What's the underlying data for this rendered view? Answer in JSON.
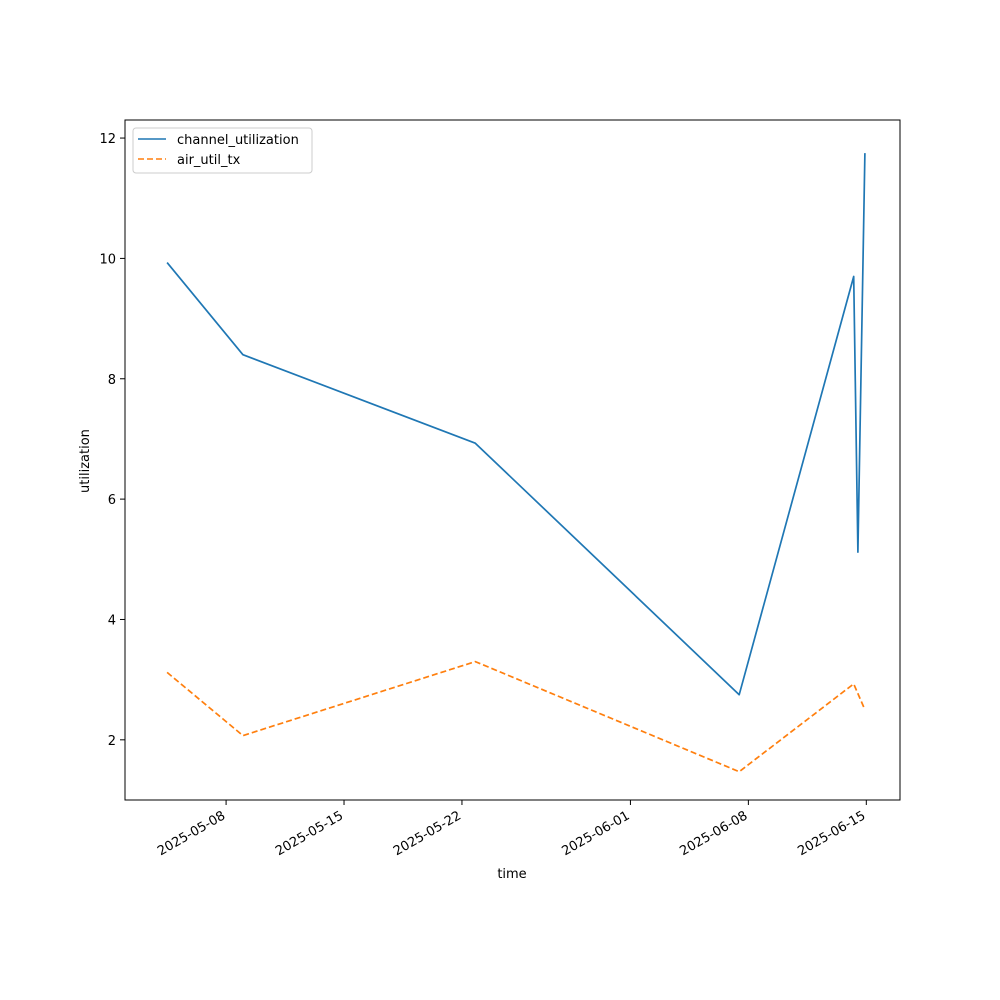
{
  "chart_data": {
    "type": "line",
    "xlabel": "time",
    "ylabel": "utilization",
    "x_type": "date",
    "xlim": [
      "2025-05-02",
      "2025-06-17"
    ],
    "ylim": [
      1.0,
      12.3
    ],
    "x_ticks": [
      "2025-05-08",
      "2025-05-15",
      "2025-05-22",
      "2025-06-01",
      "2025-06-08",
      "2025-06-15"
    ],
    "y_ticks": [
      2,
      4,
      6,
      8,
      10,
      12
    ],
    "grid": false,
    "legend_position": "top-left",
    "series": [
      {
        "name": "channel_utilization",
        "color": "#1f77b4",
        "dash": "solid",
        "points": [
          {
            "x": "2025-05-04T12:00",
            "y": 9.93
          },
          {
            "x": "2025-05-09T00:00",
            "y": 8.4
          },
          {
            "x": "2025-05-22T19:00",
            "y": 6.93
          },
          {
            "x": "2025-06-07T11:00",
            "y": 2.75
          },
          {
            "x": "2025-06-14T06:00",
            "y": 9.7
          },
          {
            "x": "2025-06-14T12:00",
            "y": 5.12
          },
          {
            "x": "2025-06-14T22:00",
            "y": 11.75
          }
        ]
      },
      {
        "name": "air_util_tx",
        "color": "#ff7f0e",
        "dash": "dashed",
        "points": [
          {
            "x": "2025-05-04T12:00",
            "y": 3.12
          },
          {
            "x": "2025-05-09T00:00",
            "y": 2.07
          },
          {
            "x": "2025-05-22T19:00",
            "y": 3.3
          },
          {
            "x": "2025-06-07T11:00",
            "y": 1.47
          },
          {
            "x": "2025-06-14T06:00",
            "y": 2.93
          },
          {
            "x": "2025-06-14T22:00",
            "y": 2.5
          }
        ]
      }
    ]
  }
}
